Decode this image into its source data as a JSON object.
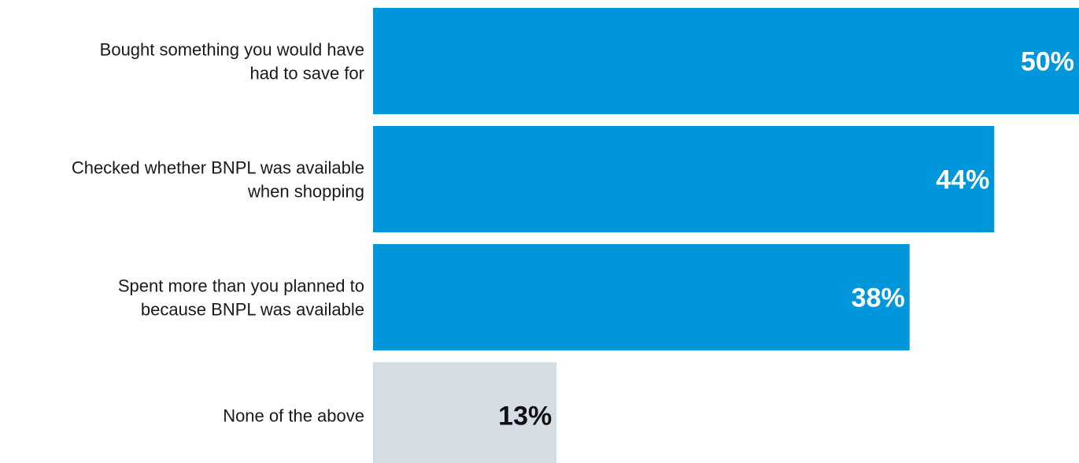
{
  "chart_data": {
    "type": "bar",
    "orientation": "horizontal",
    "categories": [
      "Bought something you would have had to save for",
      "Checked whether BNPL was available when shopping",
      "Spent more than you planned to because BNPL was available",
      "None of the above"
    ],
    "category_label_lines": [
      [
        "Bought something you would have",
        "had to save for"
      ],
      [
        "Checked whether BNPL was available",
        "when shopping"
      ],
      [
        "Spent more than you planned to",
        "because BNPL was available"
      ],
      [
        "None of the above"
      ]
    ],
    "values": [
      50,
      44,
      38,
      13
    ],
    "value_labels": [
      "50%",
      "44%",
      "38%",
      "13%"
    ],
    "unit": "%",
    "xlim": [
      0,
      50
    ],
    "grid": false,
    "legend": "none",
    "bar_colors": [
      "#0096db",
      "#0096db",
      "#0096db",
      "#d5dde5"
    ],
    "value_label_colors": [
      "#ffffff",
      "#ffffff",
      "#ffffff",
      "#111111"
    ]
  }
}
